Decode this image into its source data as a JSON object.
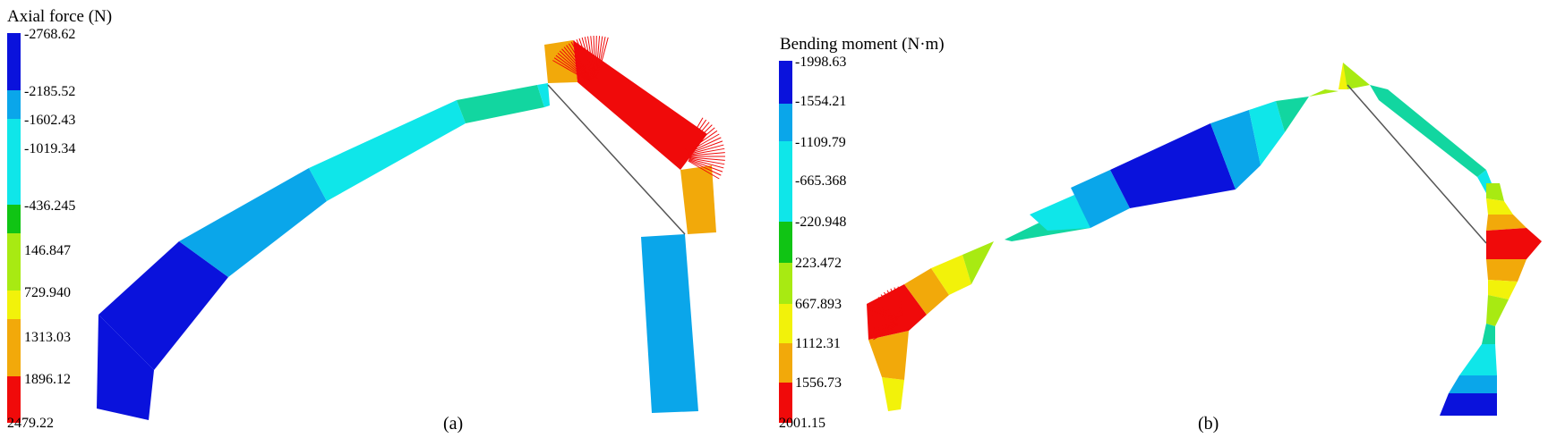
{
  "panels": [
    {
      "id": "a",
      "title": "Axial force (N)",
      "label": "(a)",
      "legend_ticks": [
        "-2768.62",
        "-2185.52",
        "-1602.43",
        "-1019.34",
        "-436.245",
        "146.847",
        "729.940",
        "1313.03",
        "1896.12",
        "2479.22"
      ]
    },
    {
      "id": "b",
      "title": "Bending moment (N·m)",
      "label": "(b)",
      "legend_ticks": [
        "-1998.63",
        "-1554.21",
        "-1109.79",
        "-665.368",
        "-220.948",
        "223.472",
        "667.893",
        "1112.31",
        "1556.73",
        "2001.15"
      ]
    }
  ],
  "colors": {
    "band1": "#0a12dc",
    "band2": "#0aa6ea",
    "band3": "#0fe6e9",
    "band4": "#12d6a0",
    "band5": "#10c414",
    "band6": "#a8ea12",
    "band7": "#f2f20a",
    "band8": "#f2a90a",
    "band9": "#f00a0a",
    "tie_line": "#555555"
  }
}
